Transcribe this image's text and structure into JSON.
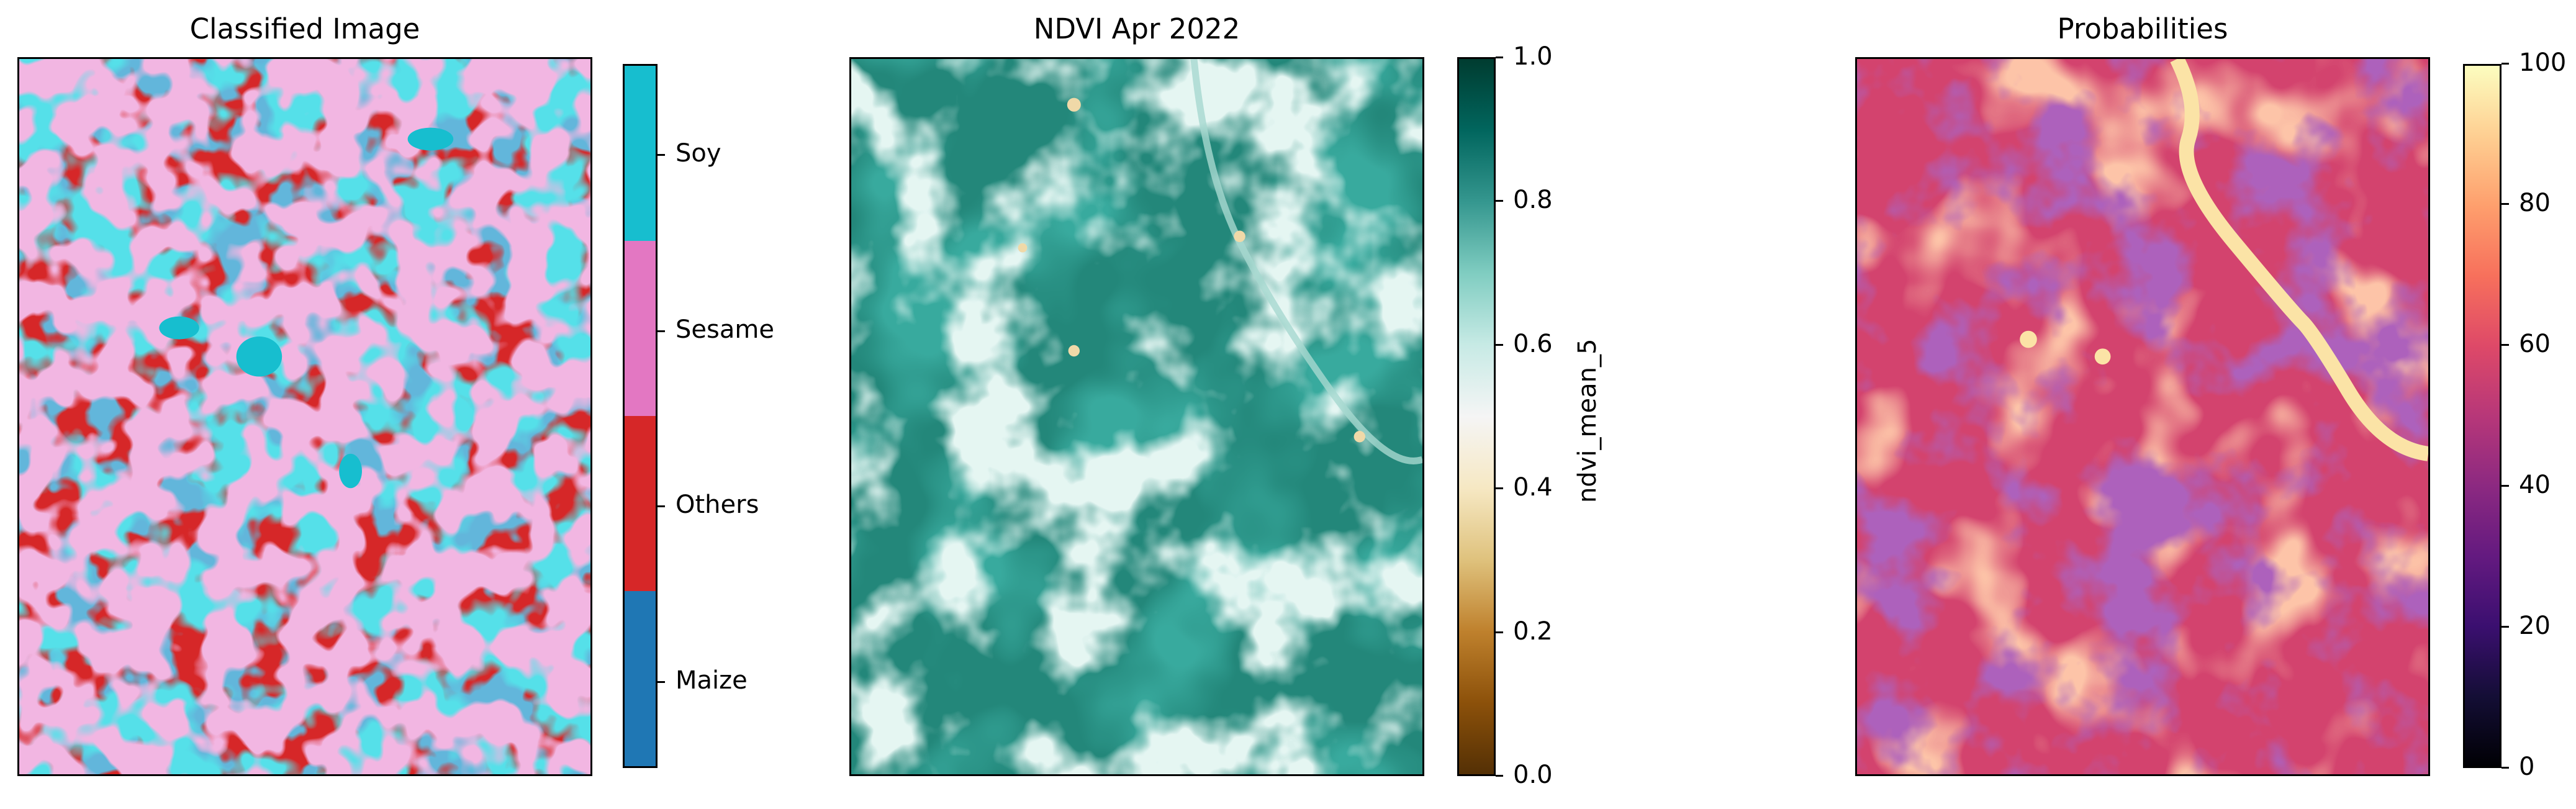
{
  "chart_data": [
    {
      "type": "heatmap",
      "title": "Classified Image",
      "colorbar": {
        "type": "categorical",
        "categories": [
          {
            "label": "Maize",
            "color": "#1f77b4"
          },
          {
            "label": "Others",
            "color": "#d62728"
          },
          {
            "label": "Sesame",
            "color": "#e377c2"
          },
          {
            "label": "Soy",
            "color": "#17becf"
          }
        ]
      },
      "axes_ticks": "none"
    },
    {
      "type": "heatmap",
      "title": "NDVI Apr 2022",
      "colormap": "BrBG",
      "colorbar": {
        "label": "ndvi_mean_5",
        "range": [
          0.0,
          1.0
        ],
        "ticks": [
          "0.0",
          "0.2",
          "0.4",
          "0.6",
          "0.8",
          "1.0"
        ]
      },
      "axes_ticks": "none"
    },
    {
      "type": "heatmap",
      "title": "Probabilities",
      "colormap": "magma",
      "colorbar": {
        "range": [
          0,
          100
        ],
        "ticks": [
          "0",
          "20",
          "40",
          "60",
          "80",
          "100"
        ]
      },
      "axes_ticks": "none"
    }
  ]
}
